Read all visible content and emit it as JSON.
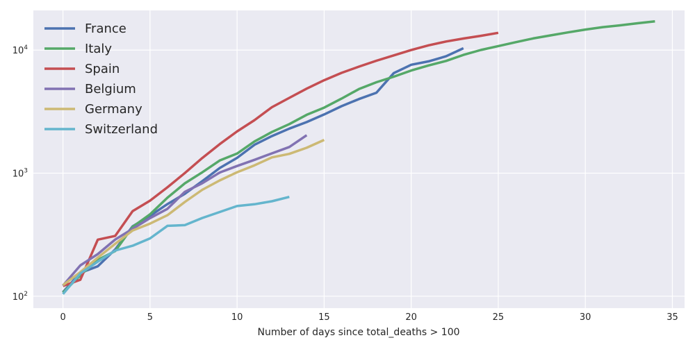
{
  "chart_data": {
    "type": "line",
    "title": "",
    "xlabel": "Number of days since total_deaths > 100",
    "ylabel": "",
    "yscale": "log",
    "xlim": [
      -1.7,
      35.7
    ],
    "ylim": [
      80,
      21000
    ],
    "x_ticks": [
      0,
      5,
      10,
      15,
      20,
      25,
      30,
      35
    ],
    "y_ticks": [
      {
        "value": 100,
        "base": "10",
        "exp": "2"
      },
      {
        "value": 1000,
        "base": "10",
        "exp": "3"
      },
      {
        "value": 10000,
        "base": "10",
        "exp": "4"
      }
    ],
    "grid": true,
    "background": "#eaeaf2",
    "legend": {
      "placement": "top-left"
    },
    "series": [
      {
        "name": "France",
        "color": "#4c72b0",
        "x": [
          0,
          1,
          2,
          3,
          4,
          5,
          6,
          7,
          8,
          9,
          10,
          11,
          12,
          13,
          14,
          15,
          16,
          17,
          18,
          19,
          20,
          21,
          22,
          23
        ],
        "y": [
          108,
          155,
          175,
          240,
          370,
          450,
          560,
          680,
          860,
          1100,
          1330,
          1700,
          2000,
          2300,
          2600,
          3000,
          3500,
          4000,
          4500,
          6500,
          7600,
          8100,
          8900,
          10350
        ]
      },
      {
        "name": "Italy",
        "color": "#55a868",
        "x": [
          0,
          1,
          2,
          3,
          4,
          5,
          6,
          7,
          8,
          9,
          10,
          11,
          12,
          13,
          14,
          15,
          16,
          17,
          18,
          19,
          20,
          21,
          22,
          23,
          24,
          25,
          26,
          27,
          28,
          29,
          30,
          31,
          32,
          33,
          34
        ],
        "y": [
          107,
          148,
          197,
          233,
          366,
          463,
          631,
          827,
          1016,
          1266,
          1441,
          1809,
          2158,
          2503,
          2978,
          3405,
          4032,
          4825,
          5476,
          6077,
          6820,
          7503,
          8165,
          9134,
          10023,
          10779,
          11591,
          12428,
          13155,
          13915,
          14681,
          15362,
          15887,
          16523,
          17127
        ]
      },
      {
        "name": "Spain",
        "color": "#c44e52",
        "x": [
          0,
          1,
          2,
          3,
          4,
          5,
          6,
          7,
          8,
          9,
          10,
          11,
          12,
          13,
          14,
          15,
          16,
          17,
          18,
          19,
          20,
          21,
          22,
          23,
          24,
          25
        ],
        "y": [
          121,
          136,
          288,
          309,
          491,
          598,
          767,
          1002,
          1326,
          1720,
          2182,
          2696,
          3434,
          4089,
          4858,
          5690,
          6528,
          7340,
          8189,
          9053,
          10003,
          10935,
          11744,
          12418,
          13055,
          13798
        ]
      },
      {
        "name": "Belgium",
        "color": "#8172b2",
        "x": [
          0,
          1,
          2,
          3,
          4,
          5,
          6,
          7,
          8,
          9,
          10,
          11,
          12,
          13,
          14
        ],
        "y": [
          122,
          178,
          220,
          289,
          353,
          431,
          513,
          705,
          828,
          1011,
          1143,
          1283,
          1447,
          1632,
          2035
        ]
      },
      {
        "name": "Germany",
        "color": "#ccb974",
        "x": [
          0,
          1,
          2,
          3,
          4,
          5,
          6,
          7,
          8,
          9,
          10,
          11,
          12,
          13,
          14,
          15
        ],
        "y": [
          123,
          157,
          206,
          267,
          342,
          389,
          455,
          583,
          732,
          872,
          1017,
          1158,
          1342,
          1434,
          1607,
          1861
        ]
      },
      {
        "name": "Switzerland",
        "color": "#64b5cd",
        "x": [
          0,
          1,
          2,
          3,
          4,
          5,
          6,
          7,
          8,
          9,
          10,
          11,
          12,
          13
        ],
        "y": [
          104,
          153,
          191,
          235,
          257,
          295,
          373,
          378,
          432,
          483,
          540,
          559,
          591,
          641
        ]
      }
    ]
  }
}
